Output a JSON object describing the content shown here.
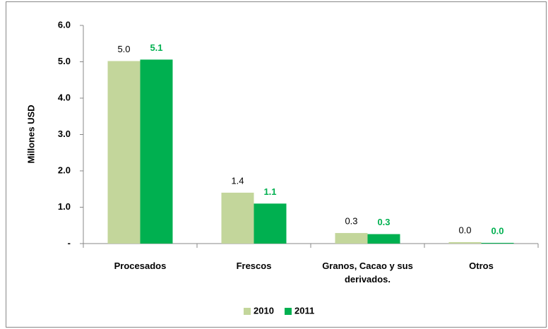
{
  "chart_data": {
    "type": "bar",
    "y_label": "Millones USD",
    "categories": [
      "Procesados",
      "Frescos",
      "Granos, Cacao y sus derivados.",
      "Otros"
    ],
    "series": [
      {
        "name": "2010",
        "color": "#c3d69b",
        "values": [
          5.02,
          1.4,
          0.29,
          0.04
        ],
        "value_labels": [
          "5.0",
          "1.4",
          "0.3",
          "0.0"
        ]
      },
      {
        "name": "2011",
        "color": "#00b050",
        "values": [
          5.06,
          1.1,
          0.26,
          0.02
        ],
        "value_labels": [
          "5.1",
          "1.1",
          "0.3",
          "0.0"
        ]
      }
    ],
    "ylim": [
      0,
      6
    ],
    "yticks": [
      {
        "value": 0,
        "label": "-"
      },
      {
        "value": 1,
        "label": "1.0"
      },
      {
        "value": 2,
        "label": "2.0"
      },
      {
        "value": 3,
        "label": "3.0"
      },
      {
        "value": 4,
        "label": "4.0"
      },
      {
        "value": 5,
        "label": "5.0"
      },
      {
        "value": 6,
        "label": "6.0"
      }
    ],
    "grid": false,
    "legend": "bottom"
  }
}
